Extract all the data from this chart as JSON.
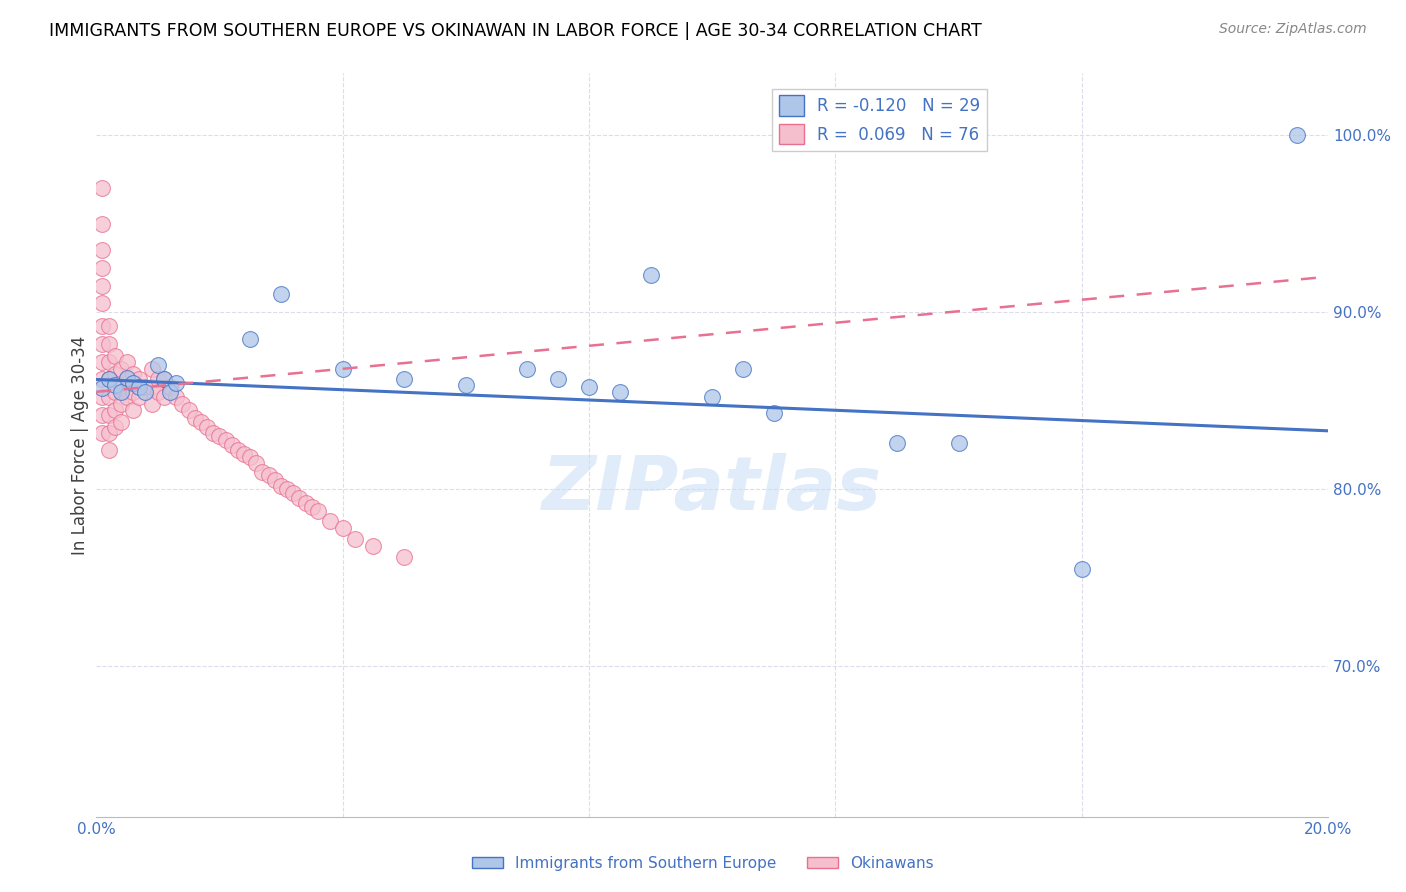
{
  "title": "IMMIGRANTS FROM SOUTHERN EUROPE VS OKINAWAN IN LABOR FORCE | AGE 30-34 CORRELATION CHART",
  "source": "Source: ZipAtlas.com",
  "ylabel": "In Labor Force | Age 30-34",
  "xlim": [
    0.0,
    0.2
  ],
  "ylim": [
    0.615,
    1.035
  ],
  "yticks_right": [
    0.7,
    0.8,
    0.9,
    1.0
  ],
  "ytick_labels_right": [
    "70.0%",
    "80.0%",
    "90.0%",
    "100.0%"
  ],
  "blue_R": "-0.120",
  "blue_N": "29",
  "pink_R": "0.069",
  "pink_N": "76",
  "blue_color": "#aec6e8",
  "pink_color": "#f5bfce",
  "blue_line_color": "#4472c4",
  "pink_line_color": "#e87090",
  "legend_label_blue": "Immigrants from Southern Europe",
  "legend_label_pink": "Okinawans",
  "blue_scatter_x": [
    0.001,
    0.002,
    0.003,
    0.004,
    0.005,
    0.006,
    0.007,
    0.008,
    0.01,
    0.011,
    0.012,
    0.013,
    0.025,
    0.03,
    0.04,
    0.05,
    0.06,
    0.07,
    0.075,
    0.08,
    0.085,
    0.09,
    0.1,
    0.105,
    0.11,
    0.13,
    0.14,
    0.16,
    0.195
  ],
  "blue_scatter_y": [
    0.857,
    0.862,
    0.859,
    0.855,
    0.863,
    0.86,
    0.858,
    0.855,
    0.87,
    0.862,
    0.855,
    0.86,
    0.885,
    0.91,
    0.868,
    0.862,
    0.859,
    0.868,
    0.862,
    0.858,
    0.855,
    0.921,
    0.852,
    0.868,
    0.843,
    0.826,
    0.826,
    0.755,
    1.0
  ],
  "pink_scatter_x": [
    0.001,
    0.001,
    0.001,
    0.001,
    0.001,
    0.001,
    0.001,
    0.001,
    0.001,
    0.001,
    0.001,
    0.001,
    0.001,
    0.002,
    0.002,
    0.002,
    0.002,
    0.002,
    0.002,
    0.002,
    0.002,
    0.003,
    0.003,
    0.003,
    0.003,
    0.003,
    0.004,
    0.004,
    0.004,
    0.004,
    0.005,
    0.005,
    0.005,
    0.006,
    0.006,
    0.006,
    0.007,
    0.007,
    0.008,
    0.009,
    0.009,
    0.009,
    0.01,
    0.01,
    0.011,
    0.011,
    0.012,
    0.013,
    0.014,
    0.015,
    0.016,
    0.017,
    0.018,
    0.019,
    0.02,
    0.021,
    0.022,
    0.023,
    0.024,
    0.025,
    0.026,
    0.027,
    0.028,
    0.029,
    0.03,
    0.031,
    0.032,
    0.033,
    0.034,
    0.035,
    0.036,
    0.038,
    0.04,
    0.042,
    0.045,
    0.05
  ],
  "pink_scatter_y": [
    0.97,
    0.95,
    0.935,
    0.925,
    0.915,
    0.905,
    0.892,
    0.882,
    0.872,
    0.862,
    0.852,
    0.842,
    0.832,
    0.892,
    0.882,
    0.872,
    0.862,
    0.852,
    0.842,
    0.832,
    0.822,
    0.875,
    0.865,
    0.855,
    0.845,
    0.835,
    0.868,
    0.858,
    0.848,
    0.838,
    0.872,
    0.862,
    0.852,
    0.865,
    0.855,
    0.845,
    0.862,
    0.852,
    0.858,
    0.868,
    0.858,
    0.848,
    0.862,
    0.855,
    0.862,
    0.852,
    0.858,
    0.852,
    0.848,
    0.845,
    0.84,
    0.838,
    0.835,
    0.832,
    0.83,
    0.828,
    0.825,
    0.822,
    0.82,
    0.818,
    0.815,
    0.81,
    0.808,
    0.805,
    0.802,
    0.8,
    0.798,
    0.795,
    0.792,
    0.79,
    0.788,
    0.782,
    0.778,
    0.772,
    0.768,
    0.762
  ],
  "watermark": "ZIPatlas",
  "background_color": "#ffffff",
  "grid_color": "#dcdcec",
  "font_color_blue": "#4472c4",
  "text_color": "#404040"
}
